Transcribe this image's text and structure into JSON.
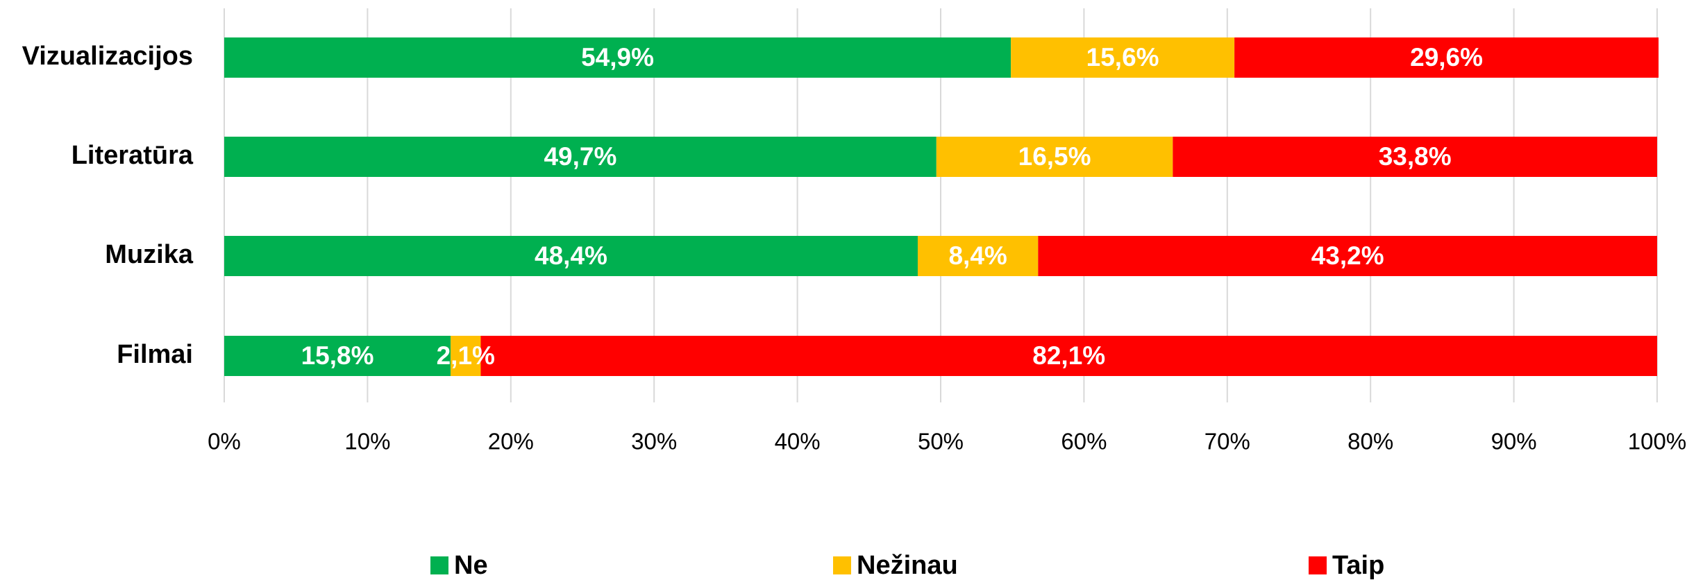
{
  "chart_data": {
    "type": "stacked_barh",
    "categories": [
      "Vizualizacijos",
      "Literatūra",
      "Muzika",
      "Filmai"
    ],
    "series": [
      {
        "name": "Ne",
        "color": "#00b050",
        "values": [
          54.9,
          49.7,
          48.4,
          15.8
        ],
        "value_labels": [
          "54,9%",
          "49,7%",
          "48,4%",
          "15,8%"
        ]
      },
      {
        "name": "Nežinau",
        "color": "#ffc000",
        "values": [
          15.6,
          16.5,
          8.4,
          2.1
        ],
        "value_labels": [
          "15,6%",
          "16,5%",
          "8,4%",
          "2,1%"
        ]
      },
      {
        "name": "Taip",
        "color": "#ff0000",
        "values": [
          29.6,
          33.8,
          43.2,
          82.1
        ],
        "value_labels": [
          "29,6%",
          "33,8%",
          "43,2%",
          "82,1%"
        ]
      }
    ],
    "xlim": [
      0,
      100
    ],
    "xticks": [
      {
        "value": 0,
        "label": "0%"
      },
      {
        "value": 10,
        "label": "10%"
      },
      {
        "value": 20,
        "label": "20%"
      },
      {
        "value": 30,
        "label": "30%"
      },
      {
        "value": 40,
        "label": "40%"
      },
      {
        "value": 50,
        "label": "50%"
      },
      {
        "value": 60,
        "label": "60%"
      },
      {
        "value": 70,
        "label": "70%"
      },
      {
        "value": 80,
        "label": "80%"
      },
      {
        "value": 90,
        "label": "90%"
      },
      {
        "value": 100,
        "label": "100%"
      }
    ],
    "grid": true,
    "legend": "bottom"
  }
}
